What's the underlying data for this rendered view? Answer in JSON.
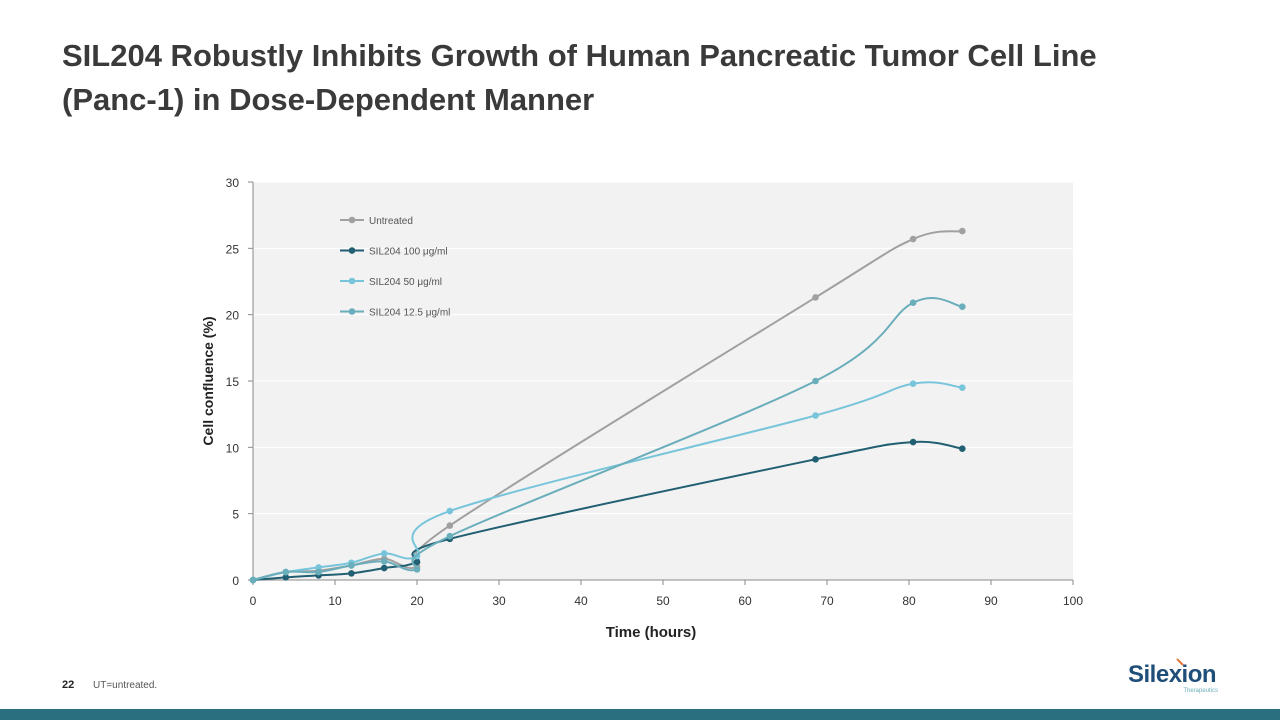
{
  "slide": {
    "title_line1": "SIL204 Robustly Inhibits Growth of Human Pancreatic Tumor Cell Line",
    "title_line2": "(Panc-1)  in Dose-Dependent Manner",
    "page_number": "22",
    "footnote": "UT=untreated.",
    "logo_text": "Silexion",
    "logo_subtext": "Therapeutics"
  },
  "colors": {
    "untreated": "#a0a0a0",
    "sil100": "#215f72",
    "sil50": "#78c5db",
    "sil12": "#6aaebb",
    "plot_bg": "#f2f2f2",
    "bar": "#2a6f80"
  },
  "chart_data": {
    "type": "line",
    "title": "",
    "xlabel": "Time (hours)",
    "ylabel": "Cell confluence (%)",
    "xlim": [
      0,
      100
    ],
    "ylim": [
      0,
      30
    ],
    "xticks": [
      0,
      10,
      20,
      30,
      40,
      50,
      60,
      70,
      80,
      90,
      100
    ],
    "yticks": [
      0,
      5,
      10,
      15,
      20,
      25,
      30
    ],
    "grid": true,
    "legend": "top-left",
    "series": [
      {
        "name": "Untreated",
        "color_key": "untreated",
        "x": [
          0,
          4,
          8,
          12,
          16,
          20,
          24,
          68.6,
          80.5,
          86.5
        ],
        "y": [
          0,
          0.6,
          0.7,
          1.1,
          1.6,
          1.0,
          4.1,
          21.3,
          25.7,
          26.3
        ]
      },
      {
        "name": "SIL204 100 μg/ml",
        "color_key": "sil100",
        "x": [
          0,
          4,
          8,
          12,
          16,
          20,
          24,
          68.6,
          80.5,
          86.5
        ],
        "y": [
          0,
          0.2,
          0.35,
          0.5,
          0.9,
          1.35,
          3.1,
          9.1,
          10.4,
          9.9
        ]
      },
      {
        "name": "SIL204 50 μg/ml",
        "color_key": "sil50",
        "x": [
          0,
          4,
          8,
          12,
          16,
          20,
          24,
          68.6,
          80.5,
          86.5
        ],
        "y": [
          0,
          0.6,
          0.95,
          1.3,
          2.0,
          1.8,
          5.2,
          12.4,
          14.8,
          14.5
        ]
      },
      {
        "name": "SIL204 12.5 μg/ml",
        "color_key": "sil12",
        "x": [
          0,
          4,
          8,
          12,
          16,
          20,
          24,
          68.6,
          80.5,
          86.5
        ],
        "y": [
          0,
          0.6,
          0.6,
          1.1,
          1.4,
          0.8,
          3.3,
          15.0,
          20.9,
          20.6
        ]
      }
    ]
  }
}
